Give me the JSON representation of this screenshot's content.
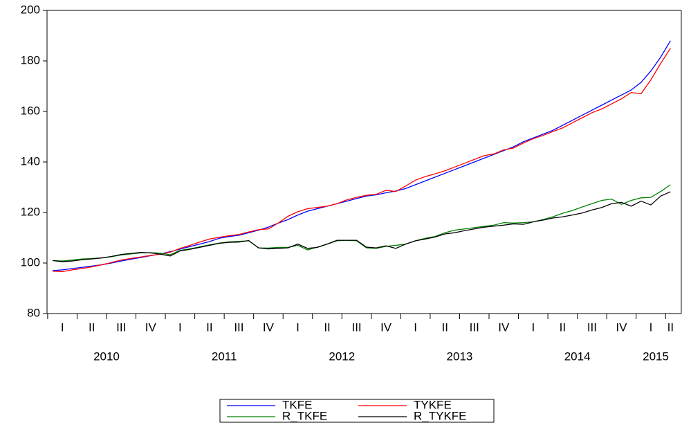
{
  "chart_data": {
    "type": "line",
    "categories": [
      null,
      "I",
      null,
      null,
      "II",
      null,
      null,
      "III",
      null,
      null,
      "IV",
      null,
      null,
      "I",
      null,
      null,
      "II",
      null,
      null,
      "III",
      null,
      null,
      "IV",
      null,
      null,
      "I",
      null,
      null,
      "II",
      null,
      null,
      "III",
      null,
      null,
      "IV",
      null,
      null,
      "I",
      null,
      null,
      "II",
      null,
      null,
      "III",
      null,
      null,
      "IV",
      null,
      null,
      "I",
      null,
      null,
      "II",
      null,
      null,
      "III",
      null,
      null,
      "IV",
      null,
      null,
      "I",
      null,
      "II"
    ],
    "years": [
      "2010",
      "2011",
      "2012",
      "2013",
      "2014",
      "2015"
    ],
    "ylim": [
      80,
      200
    ],
    "yticks": [
      80,
      100,
      120,
      140,
      160,
      180,
      200
    ],
    "series": [
      {
        "name": "TKFE",
        "color": "#0000ff",
        "values": [
          97.0,
          97.3,
          97.8,
          98.3,
          98.8,
          99.3,
          100.0,
          100.8,
          101.5,
          102.2,
          102.9,
          103.6,
          104.5,
          105.5,
          106.5,
          107.5,
          108.5,
          109.8,
          110.5,
          111.0,
          112.0,
          113.0,
          114.2,
          115.8,
          117.2,
          119.0,
          120.5,
          121.5,
          122.5,
          123.5,
          124.5,
          125.5,
          126.5,
          127.0,
          127.8,
          128.5,
          129.5,
          131.0,
          132.5,
          134.0,
          135.5,
          137.0,
          138.5,
          140.0,
          141.5,
          143.0,
          144.5,
          146.0,
          148.0,
          149.5,
          151.0,
          152.5,
          154.5,
          156.5,
          158.5,
          160.5,
          162.5,
          164.5,
          166.5,
          168.5,
          171.5,
          176.0,
          181.5,
          188.0
        ]
      },
      {
        "name": "TYKFE",
        "color": "#ff0000",
        "values": [
          96.8,
          96.6,
          97.3,
          97.8,
          98.5,
          99.3,
          100.2,
          101.2,
          101.8,
          102.4,
          103.0,
          103.5,
          104.3,
          105.8,
          107.0,
          108.3,
          109.5,
          110.2,
          110.8,
          111.3,
          112.3,
          113.2,
          113.5,
          115.8,
          118.5,
          120.3,
          121.5,
          122.0,
          122.5,
          123.5,
          125.0,
          126.0,
          126.8,
          127.2,
          128.8,
          128.3,
          130.5,
          132.8,
          134.2,
          135.3,
          136.5,
          138.0,
          139.5,
          141.0,
          142.5,
          143.2,
          144.8,
          145.5,
          147.5,
          149.2,
          150.5,
          152.0,
          153.5,
          155.5,
          157.5,
          159.5,
          161.0,
          163.0,
          165.0,
          167.5,
          167.0,
          172.5,
          179.0,
          185.0
        ]
      },
      {
        "name": "R_TKFE",
        "color": "#008000",
        "values": [
          101.0,
          100.8,
          101.2,
          101.6,
          101.8,
          102.0,
          102.5,
          103.2,
          103.6,
          104.0,
          104.1,
          103.9,
          103.3,
          105.0,
          105.6,
          106.4,
          107.2,
          107.9,
          108.4,
          108.6,
          108.8,
          106.0,
          105.9,
          106.2,
          106.2,
          107.0,
          105.2,
          106.3,
          107.5,
          108.8,
          109.0,
          108.8,
          106.0,
          105.8,
          106.6,
          107.0,
          107.5,
          108.8,
          109.8,
          110.5,
          112.0,
          113.0,
          113.5,
          114.0,
          114.5,
          115.0,
          116.0,
          115.8,
          116.0,
          116.3,
          117.2,
          118.3,
          119.7,
          120.8,
          122.2,
          123.5,
          124.8,
          125.3,
          123.2,
          124.8,
          125.8,
          126.0,
          128.3,
          131.0
        ]
      },
      {
        "name": "R_TYKFE",
        "color": "#000000",
        "values": [
          101.0,
          100.5,
          100.8,
          101.3,
          101.6,
          102.0,
          102.6,
          103.4,
          103.8,
          104.2,
          104.0,
          103.5,
          102.8,
          104.8,
          105.4,
          106.2,
          107.0,
          107.8,
          108.2,
          108.3,
          108.9,
          106.0,
          105.6,
          105.8,
          106.0,
          107.5,
          105.8,
          106.2,
          107.5,
          109.0,
          109.0,
          109.0,
          106.3,
          106.0,
          106.8,
          105.8,
          107.5,
          108.8,
          109.5,
          110.3,
          111.5,
          112.0,
          112.8,
          113.5,
          114.2,
          114.6,
          115.0,
          115.5,
          115.3,
          116.3,
          117.0,
          117.8,
          118.3,
          119.0,
          119.8,
          121.0,
          122.0,
          123.5,
          124.0,
          122.5,
          124.5,
          123.0,
          126.5,
          128.2
        ]
      }
    ]
  }
}
